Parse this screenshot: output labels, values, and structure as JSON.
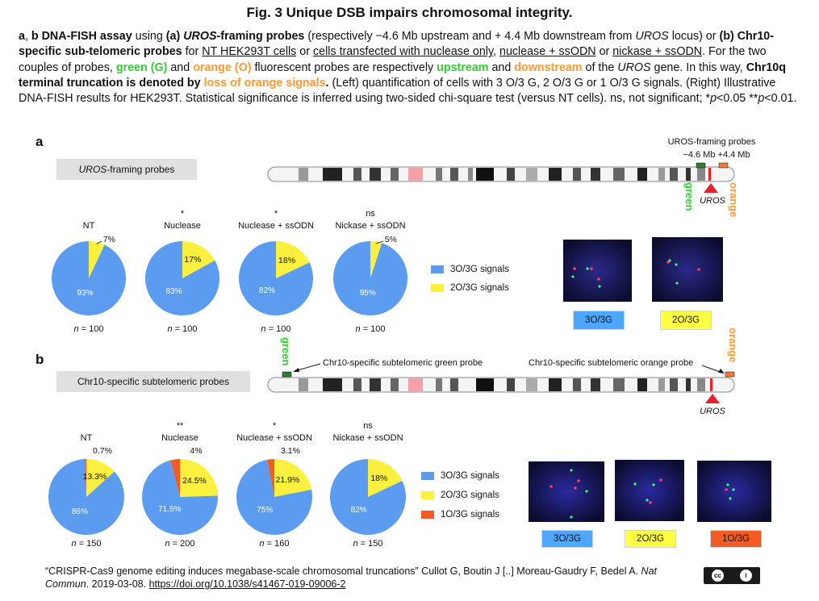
{
  "title": "Fig. 3 Unique DSB impairs chromosomal integrity.",
  "caption": {
    "p1": "a",
    "p2": ", ",
    "p3": "b DNA-FISH assay",
    "p4": " using ",
    "p5": "(a) ",
    "p6": "UROS",
    "p7": "-framing probes",
    "p8": " (respectively −4.6 Mb upstream and + 4.4 Mb downstream from ",
    "p9": "UROS",
    "p10": " locus) or ",
    "p11": "(b) Chr10-specific sub-telomeric probes",
    "p12": " for ",
    "p13": "NT HEK293T cells",
    "p14": " or ",
    "p15": "cells transfected with nuclease only",
    "p16": ", ",
    "p17": "nuclease + ssODN",
    "p18": " or ",
    "p19": "nickase + ssODN",
    "p20": ". For the two couples of probes, ",
    "p21": "green (G)",
    "p22": " and ",
    "p23": "orange (O)",
    "p24": " fluorescent probes are respectively ",
    "p25": "upstream",
    "p26": " and ",
    "p27": "downstream",
    "p28": " of the ",
    "p29": "UROS",
    "p30": " gene. In this way, ",
    "p31": "Chr10q terminal truncation is denoted by ",
    "p32": "loss of orange signals",
    "p33": ".",
    "p34": " (Left) quantification of cells with 3 O/3 G, 2 O/3 G or 1 O/3 G signals. (Right) Illustrative DNA-FISH results for HEK293T. Statistical significance is inferred using two-sided chi-square test (versus NT cells). ns, not significant; *",
    "p35": "p",
    "p36": "<0.05 **",
    "p37": "p",
    "p38": "<0.01."
  },
  "panel_a": {
    "letter": "a",
    "box_label_italic": "UROS",
    "box_label_rest": "-framing probes",
    "probe_title": "UROS-framing probes",
    "probe_dist": "−4.6 Mb +4.4 Mb",
    "green": "green",
    "orange": "orange",
    "uros": "UROS",
    "legend": [
      "3O/3G signals",
      "2O/3G signals"
    ],
    "tags": [
      "3O/3G",
      "2O/3G"
    ]
  },
  "panel_b": {
    "letter": "b",
    "box_label": "Chr10-specific subtelomeric probes",
    "green": "green",
    "orange": "orange",
    "green_probe_label": "Chr10-specific subtelomeric green probe",
    "orange_probe_label": "Chr10-specific subtelomeric orange probe",
    "uros": "UROS",
    "legend": [
      "3O/3G signals",
      "2O/3G signals",
      "1O/3G signals"
    ],
    "tags": [
      "3O/3G",
      "2O/3G",
      "1O/3G"
    ]
  },
  "colors": {
    "blue": "#5b9cf0",
    "yellow": "#fbf03d",
    "red_orange": "#f25c22",
    "green_label": "#33cc33",
    "orange_label": "#ff9933",
    "uros_red": "#e8202a"
  },
  "chart_data": [
    {
      "type": "pie",
      "panel": "a",
      "series_labels": [
        "3O/3G signals",
        "2O/3G signals"
      ],
      "pies": [
        {
          "name": "NT",
          "sig": "",
          "n_prefix": "n",
          "n_value": " = 100",
          "slices": [
            93,
            7
          ],
          "labels": [
            "93%",
            "7%"
          ]
        },
        {
          "name": "Nuclease",
          "sig": "*",
          "n_prefix": "n",
          "n_value": " = 100",
          "slices": [
            83,
            17
          ],
          "labels": [
            "83%",
            "17%"
          ]
        },
        {
          "name": "Nuclease + ssODN",
          "sig": "*",
          "n_prefix": "n",
          "n_value": " = 100",
          "slices": [
            82,
            18
          ],
          "labels": [
            "82%",
            "18%"
          ]
        },
        {
          "name": "Nickase + ssODN",
          "sig": "ns",
          "n_prefix": "n",
          "n_value": " = 100",
          "slices": [
            95,
            5
          ],
          "labels": [
            "95%",
            "5%"
          ]
        }
      ]
    },
    {
      "type": "pie",
      "panel": "b",
      "series_labels": [
        "3O/3G signals",
        "2O/3G signals",
        "1O/3G signals"
      ],
      "pies": [
        {
          "name": "NT",
          "sig": "",
          "n_prefix": "n",
          "n_value": " = 150",
          "slices": [
            86,
            13.3,
            0.7
          ],
          "labels": [
            "86%",
            "13.3%",
            "0.7%"
          ]
        },
        {
          "name": "Nuclease",
          "sig": "**",
          "n_prefix": "n",
          "n_value": " = 200",
          "slices": [
            71.5,
            24.5,
            4
          ],
          "labels": [
            "71.5%",
            "24.5%",
            "4%"
          ]
        },
        {
          "name": "Nuclease + ssODN",
          "sig": "*",
          "n_prefix": "n",
          "n_value": " = 160",
          "slices": [
            75,
            21.9,
            3.1
          ],
          "labels": [
            "75%",
            "21.9%",
            "3.1%"
          ]
        },
        {
          "name": "Nickase + ssODN",
          "sig": "ns",
          "n_prefix": "n",
          "n_value": " = 150",
          "slices": [
            82,
            18,
            0
          ],
          "labels": [
            "82%",
            "18%",
            ""
          ]
        }
      ]
    }
  ],
  "footer": {
    "f1": "“CRISPR-Cas9 genome editing induces megabase-scale chromosomal truncations” Cullot G, Boutin J [..] Moreau-Gaudry F, Bedel A. ",
    "f2": "Nat Commun",
    "f3": ". 2019-03-08. ",
    "f4": "https://doi.org/10.1038/s41467-019-09006-2"
  }
}
